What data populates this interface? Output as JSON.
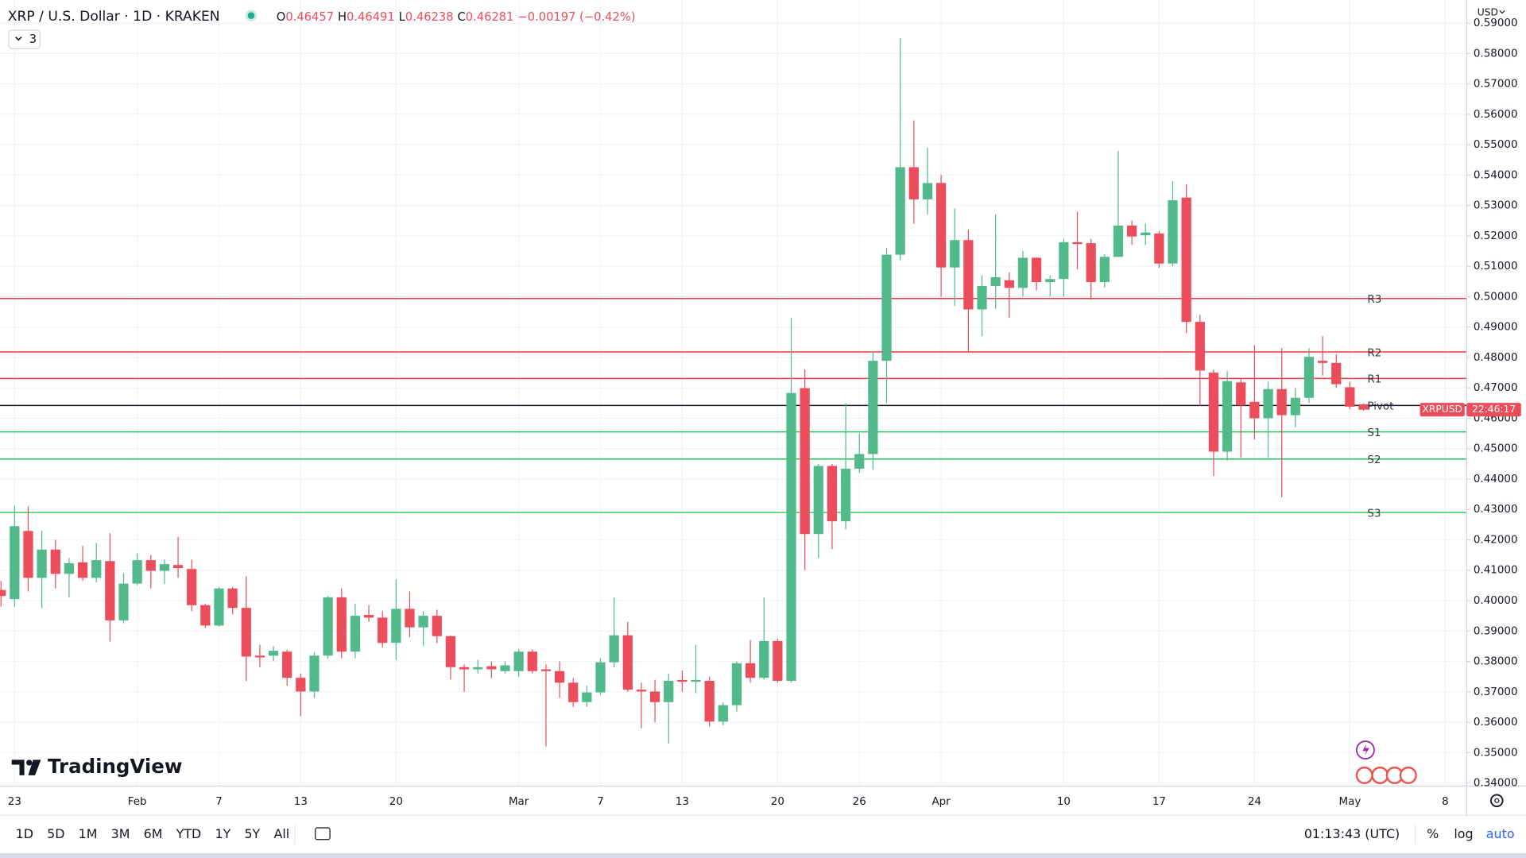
{
  "chart_data": {
    "type": "candlestick",
    "title": "XRP / U.S. Dollar · 1D · KRAKEN",
    "ohlc_legend": [
      {
        "label": "O",
        "value": "0.46457"
      },
      {
        "label": "H",
        "value": "0.46491"
      },
      {
        "label": "L",
        "value": "0.46238"
      },
      {
        "label": "C",
        "value": "0.46281"
      }
    ],
    "change": "−0.00197 (−0.42%)",
    "indicator_count": "3",
    "currency": "USD",
    "up_color": "#52b98b",
    "down_color": "#ec4d5a",
    "open": [
      0.4035,
      0.4005,
      0.4229,
      0.4075,
      0.4168,
      0.4088,
      0.4126,
      0.4075,
      0.413,
      0.3935,
      0.4056,
      0.4133,
      0.4098,
      0.4117,
      0.4104,
      0.3985,
      0.3918,
      0.404,
      0.3976,
      0.3819,
      0.3819,
      0.3832,
      0.3746,
      0.3701,
      0.3819,
      0.4011,
      0.3832,
      0.3953,
      0.3944,
      0.3861,
      0.3973,
      0.3912,
      0.395,
      0.3883,
      0.3781,
      0.3774,
      0.3784,
      0.3768,
      0.3768,
      0.3832,
      0.3774,
      0.3768,
      0.373,
      0.3666,
      0.3698,
      0.3797,
      0.3886,
      0.3707,
      0.3701,
      0.3666,
      0.3739,
      0.3733,
      0.3736,
      0.3602,
      0.3656,
      0.3794,
      0.3746,
      0.3867,
      0.3736,
      0.4699,
      0.4219,
      0.4443,
      0.4261,
      0.4434,
      0.4482,
      0.4789,
      0.5138,
      0.5426,
      0.532,
      0.5374,
      0.5096,
      0.5186,
      0.4958,
      0.5035,
      0.5054,
      0.5029,
      0.5128,
      0.5048,
      0.5058,
      0.5179,
      0.5176,
      0.5048,
      0.5131,
      0.5234,
      0.5202,
      0.5208,
      0.5109,
      0.5326,
      0.4917,
      0.475,
      0.449,
      0.4718,
      0.4654,
      0.46,
      0.4696,
      0.461,
      0.4667,
      0.4789,
      0.4782,
      0.4702,
      0.46457
    ],
    "high": [
      0.4065,
      0.4312,
      0.431,
      0.423,
      0.42,
      0.414,
      0.418,
      0.419,
      0.4222,
      0.409,
      0.4155,
      0.415,
      0.4135,
      0.421,
      0.4135,
      0.399,
      0.4045,
      0.4045,
      0.408,
      0.3855,
      0.385,
      0.3838,
      0.376,
      0.383,
      0.4015,
      0.404,
      0.399,
      0.3985,
      0.3965,
      0.407,
      0.403,
      0.3965,
      0.397,
      0.3885,
      0.379,
      0.3805,
      0.38,
      0.38,
      0.384,
      0.384,
      0.379,
      0.38,
      0.3745,
      0.372,
      0.381,
      0.401,
      0.393,
      0.373,
      0.374,
      0.376,
      0.377,
      0.3855,
      0.375,
      0.3665,
      0.38,
      0.387,
      0.401,
      0.3875,
      0.493,
      0.476,
      0.445,
      0.445,
      0.465,
      0.455,
      0.482,
      0.516,
      0.585,
      0.558,
      0.549,
      0.54,
      0.529,
      0.522,
      0.507,
      0.527,
      0.508,
      0.515,
      0.513,
      0.507,
      0.519,
      0.528,
      0.519,
      0.514,
      0.548,
      0.525,
      0.524,
      0.5215,
      0.538,
      0.537,
      0.494,
      0.476,
      0.4755,
      0.473,
      0.484,
      0.472,
      0.483,
      0.47,
      0.483,
      0.487,
      0.481,
      0.472,
      0.46491
    ],
    "low": [
      0.398,
      0.398,
      0.403,
      0.3975,
      0.404,
      0.401,
      0.4065,
      0.406,
      0.3865,
      0.3925,
      0.405,
      0.404,
      0.4055,
      0.4075,
      0.3965,
      0.391,
      0.3915,
      0.3955,
      0.3735,
      0.378,
      0.38,
      0.372,
      0.362,
      0.368,
      0.381,
      0.381,
      0.381,
      0.393,
      0.3845,
      0.3805,
      0.388,
      0.385,
      0.386,
      0.374,
      0.37,
      0.376,
      0.3745,
      0.376,
      0.375,
      0.376,
      0.352,
      0.368,
      0.365,
      0.365,
      0.369,
      0.378,
      0.37,
      0.358,
      0.36,
      0.353,
      0.37,
      0.3695,
      0.3585,
      0.359,
      0.3635,
      0.373,
      0.374,
      0.373,
      0.373,
      0.41,
      0.414,
      0.417,
      0.4235,
      0.442,
      0.443,
      0.465,
      0.512,
      0.524,
      0.527,
      0.5,
      0.497,
      0.482,
      0.487,
      0.496,
      0.493,
      0.5,
      0.502,
      0.5,
      0.5,
      0.509,
      0.499,
      0.503,
      0.513,
      0.517,
      0.517,
      0.5095,
      0.51,
      0.488,
      0.464,
      0.441,
      0.446,
      0.447,
      0.453,
      0.447,
      0.434,
      0.457,
      0.465,
      0.474,
      0.47,
      0.463,
      0.46238
    ],
    "close": [
      0.4015,
      0.4245,
      0.4075,
      0.4168,
      0.4088,
      0.4123,
      0.4075,
      0.4133,
      0.3935,
      0.4056,
      0.4133,
      0.4098,
      0.412,
      0.4107,
      0.3985,
      0.3918,
      0.404,
      0.3976,
      0.3816,
      0.3813,
      0.3835,
      0.3746,
      0.3701,
      0.3819,
      0.4011,
      0.3832,
      0.395,
      0.3944,
      0.3861,
      0.3973,
      0.3912,
      0.395,
      0.3883,
      0.3781,
      0.3774,
      0.3781,
      0.3774,
      0.3787,
      0.3832,
      0.3768,
      0.3768,
      0.373,
      0.3666,
      0.3698,
      0.3797,
      0.3886,
      0.3707,
      0.3701,
      0.3666,
      0.3736,
      0.3733,
      0.3739,
      0.3602,
      0.3656,
      0.3794,
      0.3746,
      0.3867,
      0.3736,
      0.4683,
      0.4219,
      0.4443,
      0.4261,
      0.4434,
      0.4482,
      0.4789,
      0.5138,
      0.5426,
      0.532,
      0.5374,
      0.5096,
      0.5186,
      0.4958,
      0.5035,
      0.5064,
      0.5029,
      0.5128,
      0.5048,
      0.5058,
      0.5179,
      0.5173,
      0.5048,
      0.5131,
      0.5234,
      0.5198,
      0.5211,
      0.5109,
      0.5317,
      0.4917,
      0.4757,
      0.449,
      0.4722,
      0.4642,
      0.46,
      0.4696,
      0.461,
      0.4667,
      0.4802,
      0.4782,
      0.4712,
      0.4638,
      0.46281
    ],
    "xlim": [
      -0.07,
      107.57
    ],
    "xticks": [
      {
        "value": 1,
        "label": "23"
      },
      {
        "value": 10,
        "label": "Feb"
      },
      {
        "value": 16,
        "label": "7"
      },
      {
        "value": 22,
        "label": "13"
      },
      {
        "value": 29,
        "label": "20"
      },
      {
        "value": 38,
        "label": "Mar"
      },
      {
        "value": 44,
        "label": "7"
      },
      {
        "value": 50,
        "label": "13"
      },
      {
        "value": 57,
        "label": "20"
      },
      {
        "value": 63,
        "label": "26"
      },
      {
        "value": 69,
        "label": "Apr"
      },
      {
        "value": 78,
        "label": "10"
      },
      {
        "value": 85,
        "label": "17"
      },
      {
        "value": 92,
        "label": "24"
      },
      {
        "value": 99,
        "label": "May"
      },
      {
        "value": 106,
        "label": "8"
      }
    ],
    "ylim": [
      0.339,
      0.5976
    ],
    "yticks": [
      {
        "value": 0.34,
        "label": "0.34000"
      },
      {
        "value": 0.35,
        "label": "0.35000"
      },
      {
        "value": 0.36,
        "label": "0.36000"
      },
      {
        "value": 0.37,
        "label": "0.37000"
      },
      {
        "value": 0.38,
        "label": "0.38000"
      },
      {
        "value": 0.39,
        "label": "0.39000"
      },
      {
        "value": 0.4,
        "label": "0.40000"
      },
      {
        "value": 0.41,
        "label": "0.41000"
      },
      {
        "value": 0.42,
        "label": "0.42000"
      },
      {
        "value": 0.43,
        "label": "0.43000"
      },
      {
        "value": 0.44,
        "label": "0.44000"
      },
      {
        "value": 0.45,
        "label": "0.45000"
      },
      {
        "value": 0.46,
        "label": "0.46000"
      },
      {
        "value": 0.47,
        "label": "0.47000"
      },
      {
        "value": 0.48,
        "label": "0.48000"
      },
      {
        "value": 0.49,
        "label": "0.49000"
      },
      {
        "value": 0.5,
        "label": "0.50000"
      },
      {
        "value": 0.51,
        "label": "0.51000"
      },
      {
        "value": 0.52,
        "label": "0.52000"
      },
      {
        "value": 0.53,
        "label": "0.53000"
      },
      {
        "value": 0.54,
        "label": "0.54000"
      },
      {
        "value": 0.55,
        "label": "0.55000"
      },
      {
        "value": 0.56,
        "label": "0.56000"
      },
      {
        "value": 0.57,
        "label": "0.57000"
      },
      {
        "value": 0.58,
        "label": "0.58000"
      },
      {
        "value": 0.59,
        "label": "0.59000"
      }
    ],
    "grid": true,
    "pivots": [
      {
        "name": "R3",
        "value": 0.4994,
        "color": "#f23645"
      },
      {
        "name": "R2",
        "value": 0.4818,
        "color": "#f23645"
      },
      {
        "name": "R1",
        "value": 0.4731,
        "color": "#f23645"
      },
      {
        "name": "Pivot",
        "value": 0.4642,
        "color": "#131722"
      },
      {
        "name": "S1",
        "value": 0.4555,
        "color": "#22c55e"
      },
      {
        "name": "S2",
        "value": 0.4466,
        "color": "#22c55e"
      },
      {
        "name": "S3",
        "value": 0.429,
        "color": "#22c55e"
      }
    ],
    "price_tag": {
      "symbol": "XRPUSD",
      "countdown": "22:46:17"
    }
  },
  "brand": "TradingView",
  "toolbar": {
    "ranges": [
      "1D",
      "5D",
      "1M",
      "3M",
      "6M",
      "YTD",
      "1Y",
      "5Y",
      "All"
    ],
    "clock": "01:13:43 (UTC)",
    "buttons": [
      "%",
      "log",
      "auto"
    ]
  }
}
